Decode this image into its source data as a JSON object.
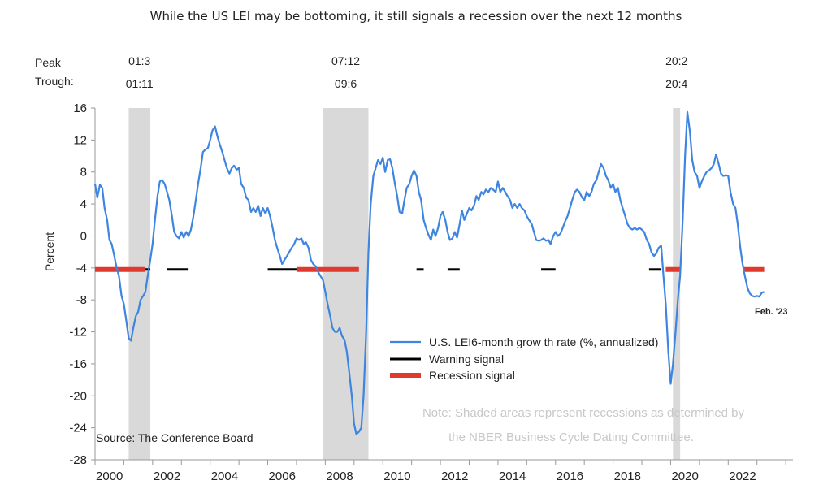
{
  "chart_data": {
    "type": "line",
    "title": "While the US LEI may be bottoming, it still signals a recession over the next 12 months",
    "ylabel": "Percent",
    "ylim": [
      -28,
      16
    ],
    "yticks": [
      16,
      12,
      8,
      4,
      0,
      -4,
      -8,
      -12,
      -16,
      -20,
      -24,
      -28
    ],
    "xlim": [
      2000.0,
      2024.25
    ],
    "xticks": [
      "2000",
      "2002",
      "2004",
      "2006",
      "2008",
      "2010",
      "2012",
      "2014",
      "2016",
      "2018",
      "2020",
      "2022"
    ],
    "peak_trough": {
      "row_labels": [
        "Peak",
        "Trough:"
      ],
      "recessions": [
        {
          "peak": "01:3",
          "trough": "01:11",
          "start": 2001.17,
          "end": 2001.92
        },
        {
          "peak": "07:12",
          "trough": "09:6",
          "start": 2007.92,
          "end": 2009.5
        },
        {
          "peak": "20:2",
          "trough": "20:4",
          "start": 2020.08,
          "end": 2020.33
        }
      ]
    },
    "signal_level": -4.2,
    "series": [
      {
        "name": "U.S. LEI6-month grow th rate (%, annualized)",
        "color": "#3d85e0",
        "points": [
          [
            2000.0,
            6.5
          ],
          [
            2000.08,
            4.8
          ],
          [
            2000.17,
            6.4
          ],
          [
            2000.25,
            6.0
          ],
          [
            2000.33,
            3.5
          ],
          [
            2000.42,
            2.0
          ],
          [
            2000.5,
            -0.5
          ],
          [
            2000.58,
            -1.0
          ],
          [
            2000.67,
            -2.5
          ],
          [
            2000.75,
            -4.0
          ],
          [
            2000.83,
            -5.0
          ],
          [
            2000.92,
            -7.5
          ],
          [
            2001.0,
            -8.5
          ],
          [
            2001.08,
            -10.5
          ],
          [
            2001.17,
            -12.8
          ],
          [
            2001.25,
            -13.1
          ],
          [
            2001.33,
            -11.5
          ],
          [
            2001.42,
            -10.0
          ],
          [
            2001.5,
            -9.5
          ],
          [
            2001.58,
            -8.0
          ],
          [
            2001.67,
            -7.5
          ],
          [
            2001.75,
            -7.0
          ],
          [
            2001.83,
            -5.0
          ],
          [
            2001.92,
            -3.0
          ],
          [
            2002.0,
            -1.0
          ],
          [
            2002.08,
            2.0
          ],
          [
            2002.17,
            5.0
          ],
          [
            2002.25,
            6.8
          ],
          [
            2002.33,
            7.0
          ],
          [
            2002.42,
            6.5
          ],
          [
            2002.5,
            5.5
          ],
          [
            2002.58,
            4.5
          ],
          [
            2002.67,
            2.5
          ],
          [
            2002.75,
            0.5
          ],
          [
            2002.83,
            0.0
          ],
          [
            2002.92,
            -0.3
          ],
          [
            2003.0,
            0.5
          ],
          [
            2003.08,
            -0.2
          ],
          [
            2003.17,
            0.5
          ],
          [
            2003.25,
            0.0
          ],
          [
            2003.33,
            0.8
          ],
          [
            2003.42,
            2.5
          ],
          [
            2003.5,
            4.5
          ],
          [
            2003.58,
            6.5
          ],
          [
            2003.67,
            8.5
          ],
          [
            2003.75,
            10.5
          ],
          [
            2003.83,
            10.8
          ],
          [
            2003.92,
            11.0
          ],
          [
            2004.0,
            12.0
          ],
          [
            2004.08,
            13.2
          ],
          [
            2004.17,
            13.7
          ],
          [
            2004.25,
            12.5
          ],
          [
            2004.33,
            11.5
          ],
          [
            2004.42,
            10.5
          ],
          [
            2004.5,
            9.5
          ],
          [
            2004.58,
            8.5
          ],
          [
            2004.67,
            7.8
          ],
          [
            2004.75,
            8.5
          ],
          [
            2004.83,
            8.8
          ],
          [
            2004.92,
            8.3
          ],
          [
            2005.0,
            8.5
          ],
          [
            2005.08,
            6.5
          ],
          [
            2005.17,
            6.0
          ],
          [
            2005.25,
            4.8
          ],
          [
            2005.33,
            4.5
          ],
          [
            2005.42,
            3.0
          ],
          [
            2005.5,
            3.5
          ],
          [
            2005.58,
            3.0
          ],
          [
            2005.67,
            3.8
          ],
          [
            2005.75,
            2.5
          ],
          [
            2005.83,
            3.5
          ],
          [
            2005.92,
            2.8
          ],
          [
            2006.0,
            3.5
          ],
          [
            2006.08,
            2.5
          ],
          [
            2006.17,
            1.0
          ],
          [
            2006.25,
            -0.5
          ],
          [
            2006.33,
            -1.5
          ],
          [
            2006.42,
            -2.5
          ],
          [
            2006.5,
            -3.5
          ],
          [
            2006.58,
            -3.0
          ],
          [
            2006.67,
            -2.5
          ],
          [
            2006.75,
            -2.0
          ],
          [
            2006.83,
            -1.5
          ],
          [
            2006.92,
            -1.0
          ],
          [
            2007.0,
            -0.3
          ],
          [
            2007.08,
            -0.5
          ],
          [
            2007.17,
            -0.3
          ],
          [
            2007.25,
            -1.0
          ],
          [
            2007.33,
            -0.8
          ],
          [
            2007.42,
            -1.5
          ],
          [
            2007.5,
            -3.0
          ],
          [
            2007.58,
            -3.5
          ],
          [
            2007.67,
            -3.8
          ],
          [
            2007.75,
            -4.5
          ],
          [
            2007.83,
            -5.0
          ],
          [
            2007.92,
            -5.5
          ],
          [
            2008.0,
            -7.0
          ],
          [
            2008.08,
            -8.5
          ],
          [
            2008.17,
            -10.0
          ],
          [
            2008.25,
            -11.5
          ],
          [
            2008.33,
            -12.0
          ],
          [
            2008.42,
            -12.0
          ],
          [
            2008.5,
            -11.5
          ],
          [
            2008.58,
            -12.5
          ],
          [
            2008.67,
            -13.0
          ],
          [
            2008.75,
            -14.5
          ],
          [
            2008.83,
            -17.0
          ],
          [
            2008.92,
            -20.0
          ],
          [
            2009.0,
            -23.5
          ],
          [
            2009.08,
            -24.8
          ],
          [
            2009.17,
            -24.5
          ],
          [
            2009.25,
            -24.0
          ],
          [
            2009.33,
            -20.0
          ],
          [
            2009.42,
            -12.0
          ],
          [
            2009.5,
            -2.0
          ],
          [
            2009.58,
            4.0
          ],
          [
            2009.67,
            7.5
          ],
          [
            2009.75,
            8.5
          ],
          [
            2009.83,
            9.5
          ],
          [
            2009.92,
            9.0
          ],
          [
            2010.0,
            9.8
          ],
          [
            2010.08,
            8.0
          ],
          [
            2010.17,
            9.5
          ],
          [
            2010.25,
            9.6
          ],
          [
            2010.33,
            8.5
          ],
          [
            2010.42,
            6.5
          ],
          [
            2010.5,
            5.0
          ],
          [
            2010.58,
            3.0
          ],
          [
            2010.67,
            2.8
          ],
          [
            2010.75,
            4.5
          ],
          [
            2010.83,
            6.0
          ],
          [
            2010.92,
            6.5
          ],
          [
            2011.0,
            7.5
          ],
          [
            2011.08,
            8.2
          ],
          [
            2011.17,
            7.5
          ],
          [
            2011.25,
            5.5
          ],
          [
            2011.33,
            4.5
          ],
          [
            2011.42,
            2.0
          ],
          [
            2011.5,
            1.0
          ],
          [
            2011.58,
            0.2
          ],
          [
            2011.67,
            -0.5
          ],
          [
            2011.75,
            0.8
          ],
          [
            2011.83,
            0.0
          ],
          [
            2011.92,
            1.0
          ],
          [
            2012.0,
            2.5
          ],
          [
            2012.08,
            3.0
          ],
          [
            2012.17,
            2.0
          ],
          [
            2012.25,
            0.5
          ],
          [
            2012.33,
            -0.5
          ],
          [
            2012.42,
            -0.3
          ],
          [
            2012.5,
            0.5
          ],
          [
            2012.58,
            -0.2
          ],
          [
            2012.67,
            1.5
          ],
          [
            2012.75,
            3.2
          ],
          [
            2012.83,
            2.0
          ],
          [
            2012.92,
            2.8
          ],
          [
            2013.0,
            3.5
          ],
          [
            2013.08,
            3.2
          ],
          [
            2013.17,
            3.8
          ],
          [
            2013.25,
            5.0
          ],
          [
            2013.33,
            4.5
          ],
          [
            2013.42,
            5.5
          ],
          [
            2013.5,
            5.2
          ],
          [
            2013.58,
            5.8
          ],
          [
            2013.67,
            5.5
          ],
          [
            2013.75,
            6.0
          ],
          [
            2013.83,
            5.8
          ],
          [
            2013.92,
            5.5
          ],
          [
            2014.0,
            6.8
          ],
          [
            2014.08,
            5.5
          ],
          [
            2014.17,
            6.0
          ],
          [
            2014.25,
            5.5
          ],
          [
            2014.33,
            5.0
          ],
          [
            2014.42,
            4.5
          ],
          [
            2014.5,
            3.5
          ],
          [
            2014.58,
            4.0
          ],
          [
            2014.67,
            3.5
          ],
          [
            2014.75,
            4.0
          ],
          [
            2014.83,
            3.5
          ],
          [
            2014.92,
            3.2
          ],
          [
            2015.0,
            2.5
          ],
          [
            2015.08,
            2.0
          ],
          [
            2015.17,
            1.5
          ],
          [
            2015.25,
            0.5
          ],
          [
            2015.33,
            -0.5
          ],
          [
            2015.42,
            -0.6
          ],
          [
            2015.5,
            -0.5
          ],
          [
            2015.58,
            -0.3
          ],
          [
            2015.67,
            -0.6
          ],
          [
            2015.75,
            -0.5
          ],
          [
            2015.83,
            -1.0
          ],
          [
            2015.92,
            0.0
          ],
          [
            2016.0,
            0.5
          ],
          [
            2016.08,
            0.0
          ],
          [
            2016.17,
            0.3
          ],
          [
            2016.25,
            1.0
          ],
          [
            2016.33,
            1.8
          ],
          [
            2016.42,
            2.5
          ],
          [
            2016.5,
            3.5
          ],
          [
            2016.58,
            4.5
          ],
          [
            2016.67,
            5.5
          ],
          [
            2016.75,
            5.8
          ],
          [
            2016.83,
            5.5
          ],
          [
            2016.92,
            4.8
          ],
          [
            2017.0,
            4.5
          ],
          [
            2017.08,
            5.5
          ],
          [
            2017.17,
            5.0
          ],
          [
            2017.25,
            5.5
          ],
          [
            2017.33,
            6.5
          ],
          [
            2017.42,
            7.0
          ],
          [
            2017.5,
            8.0
          ],
          [
            2017.58,
            9.0
          ],
          [
            2017.67,
            8.5
          ],
          [
            2017.75,
            7.5
          ],
          [
            2017.83,
            7.0
          ],
          [
            2017.92,
            6.0
          ],
          [
            2018.0,
            6.5
          ],
          [
            2018.08,
            5.5
          ],
          [
            2018.17,
            6.0
          ],
          [
            2018.25,
            4.5
          ],
          [
            2018.33,
            3.5
          ],
          [
            2018.42,
            2.5
          ],
          [
            2018.5,
            1.5
          ],
          [
            2018.58,
            1.0
          ],
          [
            2018.67,
            0.8
          ],
          [
            2018.75,
            1.0
          ],
          [
            2018.83,
            0.8
          ],
          [
            2018.92,
            1.0
          ],
          [
            2019.0,
            0.8
          ],
          [
            2019.08,
            0.5
          ],
          [
            2019.17,
            -0.5
          ],
          [
            2019.25,
            -1.0
          ],
          [
            2019.33,
            -2.0
          ],
          [
            2019.42,
            -2.5
          ],
          [
            2019.5,
            -2.2
          ],
          [
            2019.58,
            -1.5
          ],
          [
            2019.67,
            -1.2
          ],
          [
            2019.75,
            -5.0
          ],
          [
            2019.83,
            -8.5
          ],
          [
            2019.92,
            -14.5
          ],
          [
            2020.0,
            -18.5
          ],
          [
            2020.08,
            -16.0
          ],
          [
            2020.17,
            -12.0
          ],
          [
            2020.25,
            -8.0
          ],
          [
            2020.33,
            -5.0
          ],
          [
            2020.42,
            2.0
          ],
          [
            2020.5,
            10.0
          ],
          [
            2020.58,
            15.5
          ],
          [
            2020.67,
            13.0
          ],
          [
            2020.75,
            9.5
          ],
          [
            2020.83,
            8.0
          ],
          [
            2020.92,
            7.5
          ],
          [
            2021.0,
            6.0
          ],
          [
            2021.08,
            6.8
          ],
          [
            2021.17,
            7.5
          ],
          [
            2021.25,
            8.0
          ],
          [
            2021.33,
            8.2
          ],
          [
            2021.42,
            8.5
          ],
          [
            2021.5,
            9.0
          ],
          [
            2021.58,
            10.2
          ],
          [
            2021.67,
            9.0
          ],
          [
            2021.75,
            7.8
          ],
          [
            2021.83,
            7.5
          ],
          [
            2021.92,
            7.6
          ],
          [
            2022.0,
            7.5
          ],
          [
            2022.08,
            5.5
          ],
          [
            2022.17,
            4.0
          ],
          [
            2022.25,
            3.5
          ],
          [
            2022.33,
            1.5
          ],
          [
            2022.42,
            -1.5
          ],
          [
            2022.5,
            -3.5
          ],
          [
            2022.58,
            -5.0
          ],
          [
            2022.67,
            -6.5
          ],
          [
            2022.75,
            -7.2
          ],
          [
            2022.83,
            -7.5
          ],
          [
            2022.92,
            -7.6
          ],
          [
            2023.0,
            -7.5
          ],
          [
            2023.08,
            -7.6
          ],
          [
            2023.17,
            -7.1
          ],
          [
            2023.25,
            -7.0
          ]
        ]
      },
      {
        "name": "Warning signal",
        "color": "#000000",
        "segments": [
          [
            2000.0,
            2001.92
          ],
          [
            2002.5,
            2003.25
          ],
          [
            2006.0,
            2007.0
          ],
          [
            2011.17,
            2011.42
          ],
          [
            2012.25,
            2012.67
          ],
          [
            2015.5,
            2016.0
          ],
          [
            2019.25,
            2019.67
          ]
        ]
      },
      {
        "name": "Recession signal",
        "color": "#e03a2e",
        "segments": [
          [
            2000.0,
            2001.75
          ],
          [
            2007.0,
            2009.17
          ],
          [
            2019.83,
            2020.33
          ],
          [
            2022.5,
            2023.25
          ]
        ]
      }
    ],
    "end_label": "Feb. '23",
    "note_lines": [
      "Note: Shaded areas represent recessions as determined by",
      "the NBER Business Cycle Dating Committee."
    ],
    "source": "Source: The Conference Board"
  }
}
